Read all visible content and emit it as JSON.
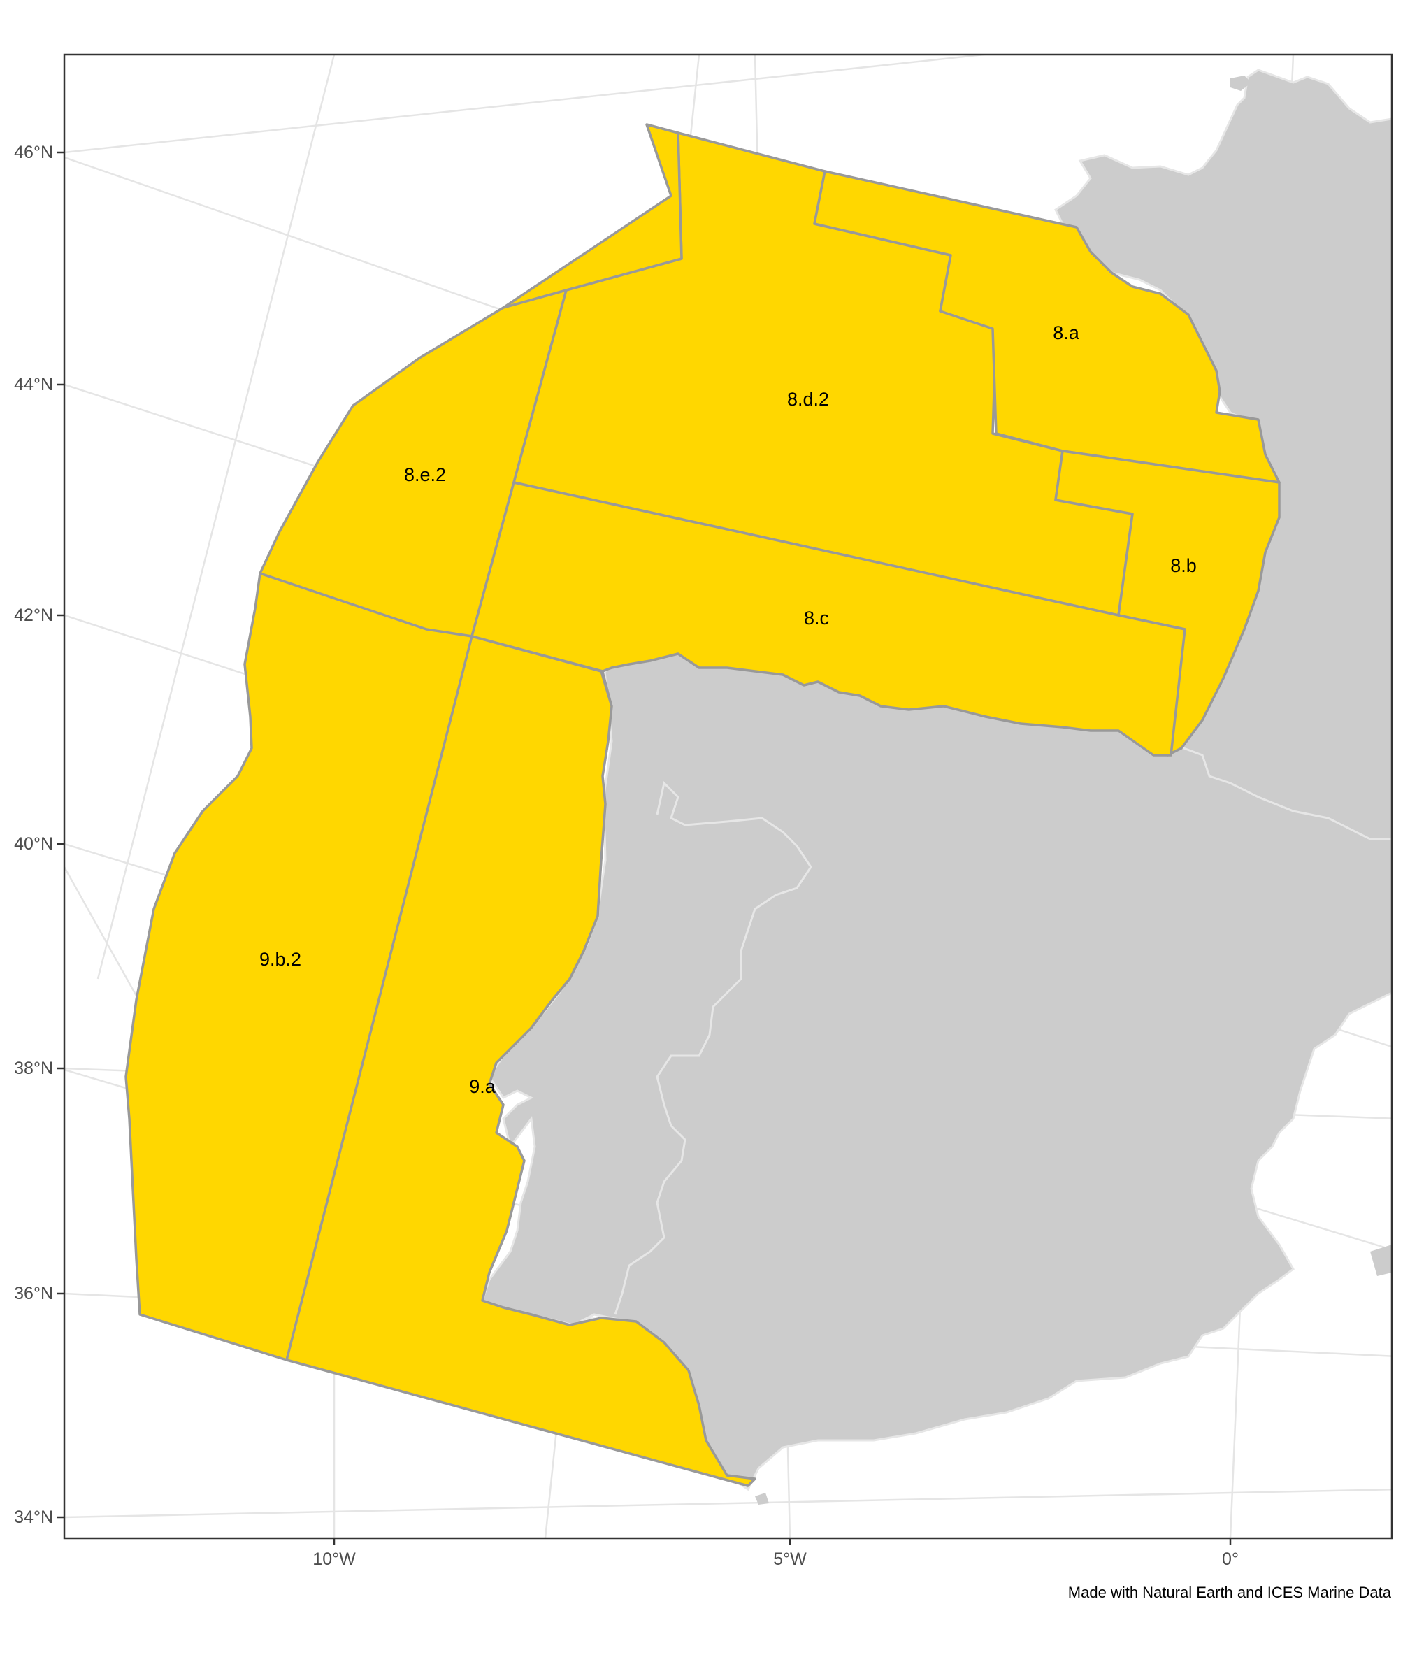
{
  "map": {
    "y_axis_labels": [
      "46°N",
      "44°N",
      "42°N",
      "40°N",
      "38°N",
      "36°N",
      "34°N"
    ],
    "x_axis_labels": [
      "10°W",
      "5°W",
      "0°"
    ],
    "areas": [
      "8.a",
      "8.b",
      "8.c",
      "8.d.2",
      "8.e.2",
      "9.a",
      "9.b.2"
    ],
    "caption": "Made with Natural Earth and ICES Marine Data",
    "colors": {
      "sea_area_fill": "#FFD700",
      "area_border": "#999999",
      "land": "#CCCCCC",
      "land_border": "#E6E6E6",
      "graticule": "#E5E5E5",
      "panel_border": "#333333"
    }
  }
}
